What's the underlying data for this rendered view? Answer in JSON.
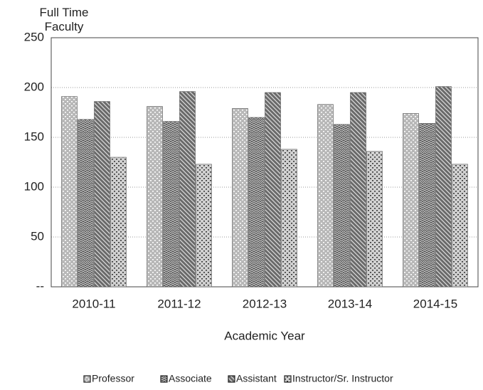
{
  "chart_data": {
    "type": "bar",
    "y_label": "Full Time Faculty",
    "x_label": "Academic Year",
    "categories": [
      "2010-11",
      "2011-12",
      "2012-13",
      "2013-14",
      "2014-15"
    ],
    "series": [
      {
        "name": "Professor",
        "color": "#b8b8b8",
        "values": [
          191,
          181,
          179,
          183,
          174
        ]
      },
      {
        "name": "Associate",
        "color": "#555555",
        "values": [
          168,
          166,
          170,
          163,
          164
        ]
      },
      {
        "name": "Assistant",
        "color": "#6a6a6a",
        "values": [
          186,
          196,
          195,
          195,
          201
        ]
      },
      {
        "name": "Instructor/Sr. Instructor",
        "color": "#d0d0d0",
        "values": [
          130,
          123,
          138,
          136,
          123
        ]
      }
    ],
    "ylim": [
      0,
      250
    ],
    "yticks": [
      {
        "value": 0,
        "label": "--"
      },
      50,
      100,
      150,
      200,
      250
    ],
    "grid": true,
    "legend": "bottom"
  }
}
